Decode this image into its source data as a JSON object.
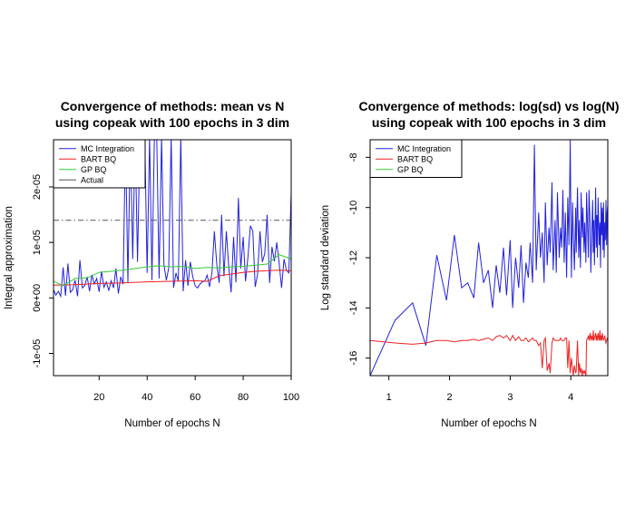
{
  "chart_data": [
    {
      "type": "line",
      "title_lines": [
        "Convergence of methods: mean vs N",
        "using copeak with 100 epochs in 3 dim"
      ],
      "xlabel": "Number of epochs N",
      "ylabel": "Integral approximation",
      "xlim": [
        1,
        100
      ],
      "ylim": [
        -1.4e-05,
        2.85e-05
      ],
      "x_ticks": [
        20,
        40,
        60,
        80,
        100
      ],
      "x_tick_labels": [
        "20",
        "40",
        "60",
        "80",
        "100"
      ],
      "y_ticks": [
        -1e-05,
        0,
        1e-05,
        2e-05
      ],
      "y_tick_labels": [
        "-1e-05",
        "0e+00",
        "1e-05",
        "2e-05"
      ],
      "legend_position": "top-left",
      "legend_labels": [
        "MC Integration",
        "BART BQ",
        "GP BQ",
        "Actual"
      ],
      "series": [
        {
          "name": "MC Integration",
          "color": "#2222dd",
          "x": [
            1,
            2,
            3,
            4,
            5,
            6,
            7,
            8,
            9,
            10,
            11,
            12,
            13,
            14,
            15,
            16,
            17,
            18,
            19,
            20,
            21,
            22,
            23,
            24,
            25,
            26,
            27,
            28,
            29,
            30,
            31,
            32,
            33,
            34,
            35,
            36,
            37,
            38,
            39,
            40,
            41,
            42,
            43,
            44,
            45,
            46,
            47,
            48,
            49,
            50,
            51,
            52,
            53,
            54,
            55,
            56,
            57,
            58,
            59,
            60,
            61,
            62,
            63,
            64,
            65,
            66,
            67,
            68,
            69,
            70,
            71,
            72,
            73,
            74,
            75,
            76,
            77,
            78,
            79,
            80,
            81,
            82,
            83,
            84,
            85,
            86,
            87,
            88,
            89,
            90,
            91,
            92,
            93,
            94,
            95,
            96,
            97,
            98,
            99,
            100
          ],
          "y": [
            1.5e-06,
            5e-07,
            1.2e-06,
            3e-07,
            5.5e-06,
            4e-07,
            6.2e-06,
            1e-06,
            1.5e-06,
            3.2e-06,
            3e-07,
            6.8e-06,
            1.8e-06,
            2.2e-06,
            3.8e-06,
            1.2e-06,
            4.2e-06,
            2.5e-06,
            3.5e-06,
            1.1e-06,
            4.8e-06,
            1.9e-06,
            2.9e-06,
            1.3e-06,
            3.1e-06,
            1.8e-06,
            5.3e-06,
            8e-07,
            3.8e-06,
            2.5e-06,
            2.9e-05,
            2.8e-06,
            2.9e-05,
            7e-06,
            2.9e-05,
            6.5e-06,
            2.9e-05,
            2.9e-05,
            2.9e-05,
            4.5e-06,
            2.9e-05,
            3.2e-06,
            2.9e-05,
            2.9e-05,
            3.5e-06,
            2.9e-05,
            6e-06,
            3.2e-06,
            5.4e-06,
            2.9e-05,
            1.8e-06,
            4.5e-06,
            3e-06,
            2.9e-05,
            1.2e-06,
            6.8e-06,
            2.2e-06,
            6.5e-06,
            3.8e-06,
            2.2e-06,
            1.8e-06,
            2.5e-06,
            2.9e-06,
            3e-06,
            4.1e-06,
            2e-06,
            4.6e-06,
            1.2e-05,
            6e-06,
            2.7e-06,
            1.5e-05,
            3.9e-06,
            1.2e-05,
            5.5e-06,
            1e-06,
            1.1e-05,
            2.8e-06,
            1.8e-05,
            5.3e-06,
            1.1e-05,
            3e-06,
            7.5e-06,
            1.3e-05,
            1.2e-05,
            2e-06,
            4.2e-06,
            1.2e-05,
            6.5e-06,
            8e-06,
            1.5e-05,
            2.7e-06,
            9.2e-06,
            6.6e-06,
            1e-05,
            6.2e-06,
            1.8e-06,
            7e-06,
            5e-06,
            4.5e-06,
            1.9e-05
          ]
        },
        {
          "name": "BART BQ",
          "color": "#ee2222",
          "x": [
            1,
            10,
            20,
            30,
            40,
            50,
            60,
            65,
            70,
            75,
            80,
            85,
            90,
            95,
            100
          ],
          "y": [
            2.3e-06,
            2.4e-06,
            2.6e-06,
            2.7e-06,
            2.9e-06,
            3e-06,
            3.1e-06,
            3e-06,
            4e-06,
            4.3e-06,
            4.6e-06,
            4.8e-06,
            4.9e-06,
            5e-06,
            4.9e-06
          ]
        },
        {
          "name": "GP BQ",
          "color": "#33cc33",
          "x": [
            1,
            5,
            10,
            15,
            20,
            25,
            30,
            35,
            40,
            45,
            50,
            55,
            60,
            65,
            70,
            75,
            80,
            85,
            90,
            95,
            100
          ],
          "y": [
            3e-06,
            2.2e-06,
            3.5e-06,
            3.6e-06,
            4.6e-06,
            4.8e-06,
            5e-06,
            5.3e-06,
            5.6e-06,
            5.8e-06,
            5.6e-06,
            5.7e-06,
            5.3e-06,
            5.5e-06,
            5.4e-06,
            5.6e-06,
            5.7e-06,
            5.9e-06,
            6.1e-06,
            7.8e-06,
            7e-06
          ]
        },
        {
          "name": "Actual",
          "color": "#555555",
          "dashed": true,
          "x": [
            1,
            100
          ],
          "y": [
            1.4e-05,
            1.4e-05
          ]
        }
      ]
    },
    {
      "type": "line",
      "title_lines": [
        "Convergence of methods: log(sd) vs log(N)",
        "using copeak with 100 epochs in 3 dim"
      ],
      "xlabel": "Number of epochs N",
      "ylabel": "Log standard deviation",
      "xlim": [
        0.69,
        4.61
      ],
      "ylim": [
        -16.7,
        -7.3
      ],
      "x_ticks": [
        1,
        2,
        3,
        4
      ],
      "x_tick_labels": [
        "1",
        "2",
        "3",
        "4"
      ],
      "y_ticks": [
        -16,
        -14,
        -12,
        -10,
        -8
      ],
      "y_tick_labels": [
        "-16",
        "-14",
        "-12",
        "-10",
        "-8"
      ],
      "legend_position": "top-left",
      "legend_labels": [
        "MC Integration",
        "BART BQ",
        "GP BQ"
      ],
      "series": [
        {
          "name": "MC Integration",
          "color": "#2222dd",
          "x": [
            0.69,
            1.1,
            1.39,
            1.61,
            1.79,
            1.95,
            2.08,
            2.2,
            2.3,
            2.4,
            2.48,
            2.56,
            2.64,
            2.71,
            2.77,
            2.83,
            2.89,
            2.94,
            3.0,
            3.04,
            3.09,
            3.14,
            3.18,
            3.22,
            3.26,
            3.3,
            3.33,
            3.37,
            3.4,
            3.43,
            3.47,
            3.5,
            3.53,
            3.56,
            3.58,
            3.61,
            3.64,
            3.66,
            3.69,
            3.71,
            3.74,
            3.76,
            3.78,
            3.81,
            3.83,
            3.85,
            3.87,
            3.89,
            3.91,
            3.93,
            3.95,
            3.97,
            3.99,
            4.01,
            4.03,
            4.04,
            4.06,
            4.08,
            4.09,
            4.11,
            4.13,
            4.14,
            4.16,
            4.17,
            4.19,
            4.2,
            4.22,
            4.23,
            4.25,
            4.26,
            4.28,
            4.29,
            4.3,
            4.32,
            4.33,
            4.34,
            4.36,
            4.37,
            4.38,
            4.39,
            4.41,
            4.42,
            4.43,
            4.44,
            4.45,
            4.47,
            4.48,
            4.49,
            4.5,
            4.51,
            4.52,
            4.53,
            4.54,
            4.55,
            4.56,
            4.57,
            4.58,
            4.59,
            4.6,
            4.61
          ],
          "y": [
            -16.7,
            -14.5,
            -13.8,
            -15.5,
            -11.9,
            -13.7,
            -11.1,
            -13.2,
            -13.0,
            -13.6,
            -11.4,
            -13.0,
            -12.5,
            -14.0,
            -12.3,
            -13.4,
            -11.6,
            -13.5,
            -11.3,
            -14.0,
            -12.0,
            -13.2,
            -11.5,
            -13.8,
            -12.2,
            -12.8,
            -11.4,
            -13.0,
            -7.5,
            -12.5,
            -10.2,
            -12.0,
            -11.0,
            -13.0,
            -9.8,
            -12.3,
            -10.8,
            -11.8,
            -9.0,
            -12.5,
            -10.5,
            -12.6,
            -9.4,
            -12.0,
            -10.8,
            -11.6,
            -9.3,
            -12.2,
            -10.2,
            -12.8,
            -9.6,
            -11.5,
            -7.3,
            -12.8,
            -9.8,
            -11.0,
            -12.5,
            -10.0,
            -11.8,
            -9.2,
            -12.0,
            -10.5,
            -12.4,
            -9.4,
            -11.2,
            -10.0,
            -11.8,
            -10.6,
            -12.2,
            -9.4,
            -11.0,
            -12.0,
            -9.3,
            -10.8,
            -12.6,
            -11.5,
            -9.7,
            -11.8,
            -10.5,
            -12.3,
            -9.2,
            -11.6,
            -10.3,
            -12.0,
            -9.6,
            -11.5,
            -10.6,
            -12.4,
            -9.8,
            -11.1,
            -10.0,
            -11.7,
            -9.8,
            -12.0,
            -10.6,
            -11.3,
            -9.7,
            -11.5,
            -10.2,
            -9.9
          ]
        },
        {
          "name": "BART BQ",
          "color": "#ee2222",
          "x": [
            0.69,
            1.1,
            1.39,
            1.61,
            1.79,
            1.95,
            2.08,
            2.2,
            2.3,
            2.4,
            2.48,
            2.56,
            2.64,
            2.71,
            2.77,
            2.83,
            2.89,
            2.94,
            3.0,
            3.04,
            3.09,
            3.14,
            3.18,
            3.22,
            3.26,
            3.3,
            3.33,
            3.37,
            3.4,
            3.43,
            3.47,
            3.5,
            3.53,
            3.56,
            3.58,
            3.61,
            3.64,
            3.66,
            3.69,
            3.71,
            3.74,
            3.76,
            3.78,
            3.81,
            3.83,
            3.85,
            3.87,
            3.89,
            3.91,
            3.93,
            3.95,
            3.97,
            3.99,
            4.01,
            4.03,
            4.04,
            4.06,
            4.08,
            4.09,
            4.11,
            4.13,
            4.14,
            4.16,
            4.17,
            4.19,
            4.2,
            4.22,
            4.23,
            4.25,
            4.26,
            4.28,
            4.29,
            4.3,
            4.32,
            4.33,
            4.34,
            4.36,
            4.37,
            4.38,
            4.39,
            4.41,
            4.42,
            4.43,
            4.44,
            4.45,
            4.47,
            4.48,
            4.49,
            4.5,
            4.51,
            4.52,
            4.53,
            4.54,
            4.55,
            4.56,
            4.57,
            4.58,
            4.59,
            4.6,
            4.61
          ],
          "y": [
            -15.3,
            -15.4,
            -15.45,
            -15.4,
            -15.3,
            -15.3,
            -15.35,
            -15.3,
            -15.3,
            -15.25,
            -15.3,
            -15.25,
            -15.2,
            -15.3,
            -15.15,
            -15.1,
            -15.2,
            -15.1,
            -15.3,
            -15.1,
            -15.3,
            -15.15,
            -15.3,
            -15.3,
            -15.2,
            -15.35,
            -15.3,
            -15.2,
            -15.3,
            -15.3,
            -15.5,
            -15.4,
            -16.4,
            -15.3,
            -15.2,
            -16.5,
            -16.2,
            -16.6,
            -15.4,
            -15.2,
            -15.3,
            -15.3,
            -15.3,
            -15.3,
            -15.2,
            -15.3,
            -15.3,
            -15.3,
            -15.2,
            -15.2,
            -16.4,
            -15.3,
            -16.6,
            -16.0,
            -16.4,
            -16.7,
            -16.3,
            -16.6,
            -16.5,
            -15.3,
            -16.7,
            -16.2,
            -16.6,
            -16.4,
            -16.7,
            -16.5,
            -16.6,
            -16.5,
            -16.7,
            -15.3,
            -15.2,
            -15.1,
            -15.3,
            -15.0,
            -15.3,
            -15.1,
            -15.3,
            -14.9,
            -15.3,
            -15.2,
            -15.0,
            -15.3,
            -15.1,
            -15.3,
            -15.0,
            -15.3,
            -14.9,
            -15.3,
            -15.1,
            -15.3,
            -15.0,
            -15.2,
            -15.3,
            -15.2,
            -15.1,
            -15.3,
            -15.4,
            -15.3,
            -15.2,
            -15.3
          ]
        },
        {
          "name": "GP BQ",
          "color": "#33cc33",
          "x": [],
          "y": []
        }
      ]
    }
  ]
}
